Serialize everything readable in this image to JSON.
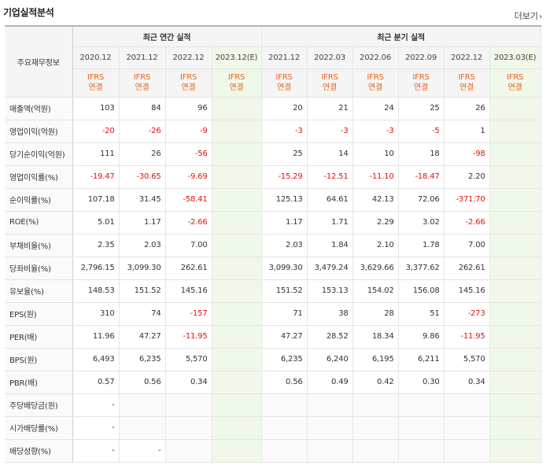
{
  "section_title": "기업실적분석",
  "more_label": "더보기",
  "colors": {
    "negative": "#e0110f",
    "ifrs": "#e2641d",
    "estimate_bg": "#f0f8ea",
    "header_bg": "#f5f5f5"
  },
  "header": {
    "row_label": "주요재무정보",
    "annual_group": "최근 연간 실적",
    "quarter_group": "최근 분기 실적",
    "annual_periods": [
      "2020.12",
      "2021.12",
      "2022.12",
      "2023.12(E)"
    ],
    "quarter_periods": [
      "2021.12",
      "2022.03",
      "2022.06",
      "2022.09",
      "2022.12",
      "2023.03(E)"
    ],
    "ifrs_line1": "IFRS",
    "ifrs_line2": "연결"
  },
  "rows": [
    {
      "label": "매출액(억원)",
      "values": [
        "103",
        "84",
        "96",
        "",
        "20",
        "21",
        "24",
        "25",
        "26",
        ""
      ]
    },
    {
      "label": "영업이익(억원)",
      "values": [
        "-20",
        "-26",
        "-9",
        "",
        "-3",
        "-3",
        "-3",
        "-5",
        "1",
        ""
      ]
    },
    {
      "label": "당기순이익(억원)",
      "values": [
        "111",
        "26",
        "-56",
        "",
        "25",
        "14",
        "10",
        "18",
        "-98",
        ""
      ]
    },
    {
      "label": "영업이익률(%)",
      "values": [
        "-19.47",
        "-30.65",
        "-9.69",
        "",
        "-15.29",
        "-12.51",
        "-11.10",
        "-18.47",
        "2.20",
        ""
      ]
    },
    {
      "label": "순이익률(%)",
      "values": [
        "107.18",
        "31.45",
        "-58.41",
        "",
        "125.13",
        "64.61",
        "42.13",
        "72.06",
        "-371.70",
        ""
      ]
    },
    {
      "label": "ROE(%)",
      "values": [
        "5.01",
        "1.17",
        "-2.66",
        "",
        "1.17",
        "1.71",
        "2.29",
        "3.02",
        "-2.66",
        ""
      ]
    },
    {
      "label": "부채비율(%)",
      "values": [
        "2.35",
        "2.03",
        "7.00",
        "",
        "2.03",
        "1.84",
        "2.10",
        "1.78",
        "7.00",
        ""
      ]
    },
    {
      "label": "당좌비율(%)",
      "values": [
        "2,796.15",
        "3,099.30",
        "262.61",
        "",
        "3,099.30",
        "3,479.24",
        "3,629.66",
        "3,377.62",
        "262.61",
        ""
      ]
    },
    {
      "label": "유보율(%)",
      "values": [
        "148.53",
        "151.52",
        "145.16",
        "",
        "151.52",
        "153.13",
        "154.02",
        "156.08",
        "145.16",
        ""
      ]
    },
    {
      "label": "EPS(원)",
      "values": [
        "310",
        "74",
        "-157",
        "",
        "71",
        "38",
        "28",
        "51",
        "-273",
        ""
      ]
    },
    {
      "label": "PER(배)",
      "values": [
        "11.96",
        "47.27",
        "-11.95",
        "",
        "47.27",
        "28.52",
        "18.34",
        "9.86",
        "-11.95",
        ""
      ]
    },
    {
      "label": "BPS(원)",
      "values": [
        "6,493",
        "6,235",
        "5,570",
        "",
        "6,235",
        "6,240",
        "6,195",
        "6,211",
        "5,570",
        ""
      ]
    },
    {
      "label": "PBR(배)",
      "values": [
        "0.57",
        "0.56",
        "0.34",
        "",
        "0.56",
        "0.49",
        "0.42",
        "0.30",
        "0.34",
        ""
      ]
    },
    {
      "label": "주당배당금(원)",
      "values": [
        "-",
        "",
        "",
        "",
        "",
        "",
        "",
        "",
        "",
        ""
      ]
    },
    {
      "label": "시가배당률(%)",
      "values": [
        "-",
        "",
        "",
        "",
        "",
        "",
        "",
        "",
        "",
        ""
      ]
    },
    {
      "label": "배당성향(%)",
      "values": [
        "-",
        "-",
        "",
        "",
        "",
        "",
        "",
        "",
        "",
        ""
      ]
    }
  ]
}
